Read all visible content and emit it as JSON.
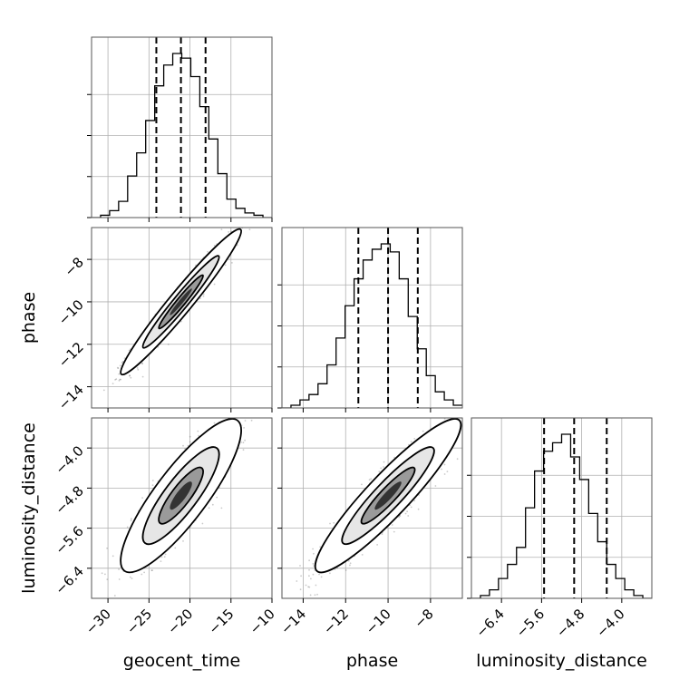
{
  "chart_data": {
    "type": "corner",
    "parameters": [
      "geocent_time",
      "phase",
      "luminosity_distance"
    ],
    "axes": {
      "geocent_time": {
        "label": "geocent_time",
        "range": [
          -32,
          -10
        ],
        "ticks": [
          -30,
          -25,
          -20,
          -15,
          -10
        ],
        "tick_labels": [
          "−30",
          "−25",
          "−20",
          "−15",
          "−10"
        ],
        "quantiles": [
          -24.1,
          -21.1,
          -18.1
        ],
        "hist_edges": [
          -32,
          -30.9,
          -29.8,
          -28.7,
          -27.6,
          -26.5,
          -25.4,
          -24.3,
          -23.2,
          -22.1,
          -21.0,
          -19.9,
          -18.8,
          -17.7,
          -16.6,
          -15.5,
          -14.4,
          -13.3,
          -12.2,
          -11.1,
          -10
        ],
        "hist_counts": [
          0,
          1,
          3,
          7,
          18,
          28,
          42,
          57,
          66,
          71,
          69,
          61,
          48,
          34,
          19,
          8,
          4,
          2,
          1,
          0
        ]
      },
      "phase": {
        "label": "phase",
        "range": [
          -15,
          -6.5
        ],
        "ticks": [
          -14,
          -12,
          -10,
          -8
        ],
        "tick_labels": [
          "−14",
          "−12",
          "−10",
          "−8"
        ],
        "quantiles": [
          -11.4,
          -10.0,
          -8.6
        ],
        "hist_edges": [
          -15,
          -14.575,
          -14.15,
          -13.725,
          -13.3,
          -12.875,
          -12.45,
          -12.025,
          -11.6,
          -11.175,
          -10.75,
          -10.325,
          -9.9,
          -9.475,
          -9.05,
          -8.625,
          -8.2,
          -7.775,
          -7.35,
          -6.925,
          -6.5
        ],
        "hist_counts": [
          0,
          1,
          3,
          5,
          9,
          16,
          26,
          38,
          48,
          55,
          59,
          61,
          58,
          48,
          34,
          22,
          12,
          6,
          3,
          1
        ]
      },
      "luminosity_distance": {
        "label": "luminosity_distance",
        "range": [
          -7.0,
          -3.4
        ],
        "ticks": [
          -6.4,
          -5.6,
          -4.8,
          -4.0
        ],
        "tick_labels": [
          "−6.4",
          "−5.6",
          "−4.8",
          "−4.0"
        ],
        "quantiles": [
          -5.55,
          -4.95,
          -4.3
        ],
        "hist_edges": [
          -7.0,
          -6.82,
          -6.64,
          -6.46,
          -6.28,
          -6.1,
          -5.92,
          -5.74,
          -5.56,
          -5.38,
          -5.2,
          -5.02,
          -4.84,
          -4.66,
          -4.48,
          -4.3,
          -4.12,
          -3.94,
          -3.76,
          -3.58,
          -3.4
        ],
        "hist_counts": [
          0,
          1,
          3,
          7,
          12,
          18,
          32,
          45,
          52,
          55,
          58,
          50,
          42,
          30,
          20,
          12,
          7,
          3,
          1,
          0
        ]
      }
    },
    "pairs": [
      {
        "x": "geocent_time",
        "y": "phase",
        "correlation": 0.97
      },
      {
        "x": "geocent_time",
        "y": "luminosity_distance",
        "correlation": 0.85
      },
      {
        "x": "phase",
        "y": "luminosity_distance",
        "correlation": 0.92
      }
    ],
    "grid": true
  },
  "colors": {
    "contour_fill": "#000000",
    "points": "#666666",
    "hist_line": "#000000",
    "quantile_line": "#000000"
  }
}
